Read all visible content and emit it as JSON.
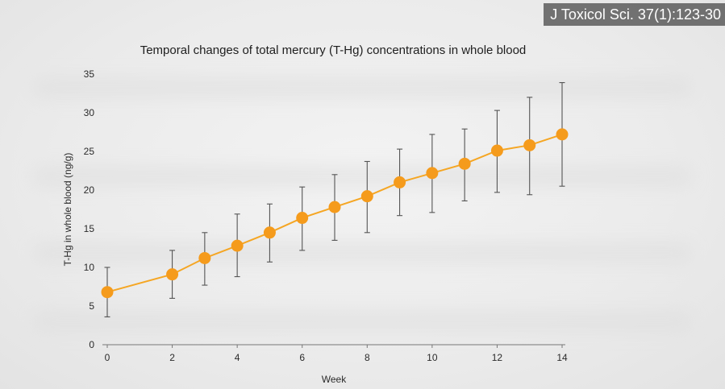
{
  "citation": "J Toxicol Sci. 37(1):123-30",
  "colors": {
    "marker": "#f59b1c",
    "line": "#f5a623",
    "error_bar": "#555555",
    "axis": "#777777"
  },
  "chart_data": {
    "type": "line",
    "title": "Temporal changes of total mercury (T-Hg) concentrations in whole blood",
    "xlabel": "Week",
    "ylabel": "T-Hg in whole blood (ng/g)",
    "xlim": [
      0,
      14
    ],
    "ylim": [
      0,
      35
    ],
    "x_ticks": [
      0,
      2,
      4,
      6,
      8,
      10,
      12,
      14
    ],
    "y_ticks": [
      0,
      5,
      10,
      15,
      20,
      25,
      30,
      35
    ],
    "grid": false,
    "legend": "none",
    "series": [
      {
        "x": [
          0,
          2,
          3,
          4,
          5,
          6,
          7,
          8,
          9,
          10,
          11,
          12,
          13,
          14
        ],
        "y": [
          6.8,
          9.1,
          11.2,
          12.8,
          14.5,
          16.4,
          17.8,
          19.2,
          21.0,
          22.2,
          23.4,
          25.1,
          25.8,
          27.2
        ],
        "error_low": [
          3.6,
          6.0,
          7.7,
          8.8,
          10.7,
          12.2,
          13.5,
          14.5,
          16.7,
          17.1,
          18.6,
          19.7,
          19.4,
          20.5
        ],
        "error_high": [
          10.0,
          12.2,
          14.5,
          16.9,
          18.2,
          20.4,
          22.0,
          23.7,
          25.3,
          27.2,
          27.9,
          30.3,
          32.0,
          33.9
        ]
      }
    ]
  }
}
